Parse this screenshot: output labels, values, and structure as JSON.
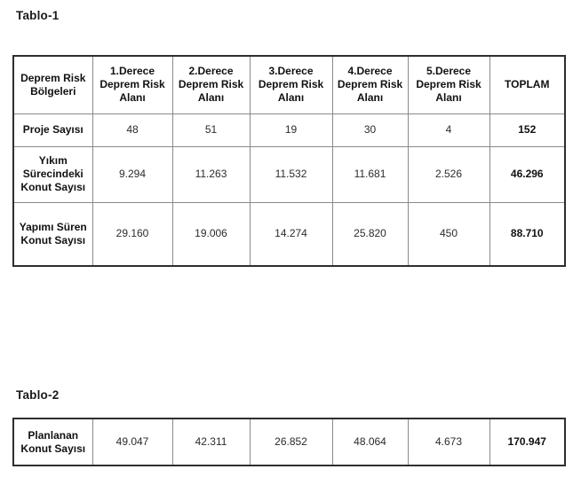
{
  "titles": {
    "table1": "Tablo-1",
    "table2": "Tablo-2"
  },
  "table1": {
    "headers": [
      "Deprem Risk\nBölgeleri",
      "1.Derece\nDeprem Risk\nAlanı",
      "2.Derece\nDeprem Risk\nAlanı",
      "3.Derece\nDeprem Risk\nAlanı",
      "4.Derece\nDeprem Risk\nAlanı",
      "5.Derece\nDeprem Risk\nAlanı",
      "TOPLAM"
    ],
    "rows": [
      {
        "label": "Proje Sayısı",
        "values": [
          "48",
          "51",
          "19",
          "30",
          "4"
        ],
        "total": "152"
      },
      {
        "label": "Yıkım\nSürecindeki\nKonut Sayısı",
        "values": [
          "9.294",
          "11.263",
          "11.532",
          "11.681",
          "2.526"
        ],
        "total": "46.296"
      },
      {
        "label": "Yapımı Süren\nKonut Sayısı",
        "values": [
          "29.160",
          "19.006",
          "14.274",
          "25.820",
          "450"
        ],
        "total": "88.710"
      }
    ]
  },
  "table2": {
    "rows": [
      {
        "label": "Planlanan\nKonut Sayısı",
        "values": [
          "49.047",
          "42.311",
          "26.852",
          "48.064",
          "4.673"
        ],
        "total": "170.947"
      }
    ]
  },
  "colors": {
    "background": "#ffffff",
    "text": "#1f1f1f",
    "border_outer": "#2e2e2e",
    "border_inner": "#8a8a8a"
  }
}
